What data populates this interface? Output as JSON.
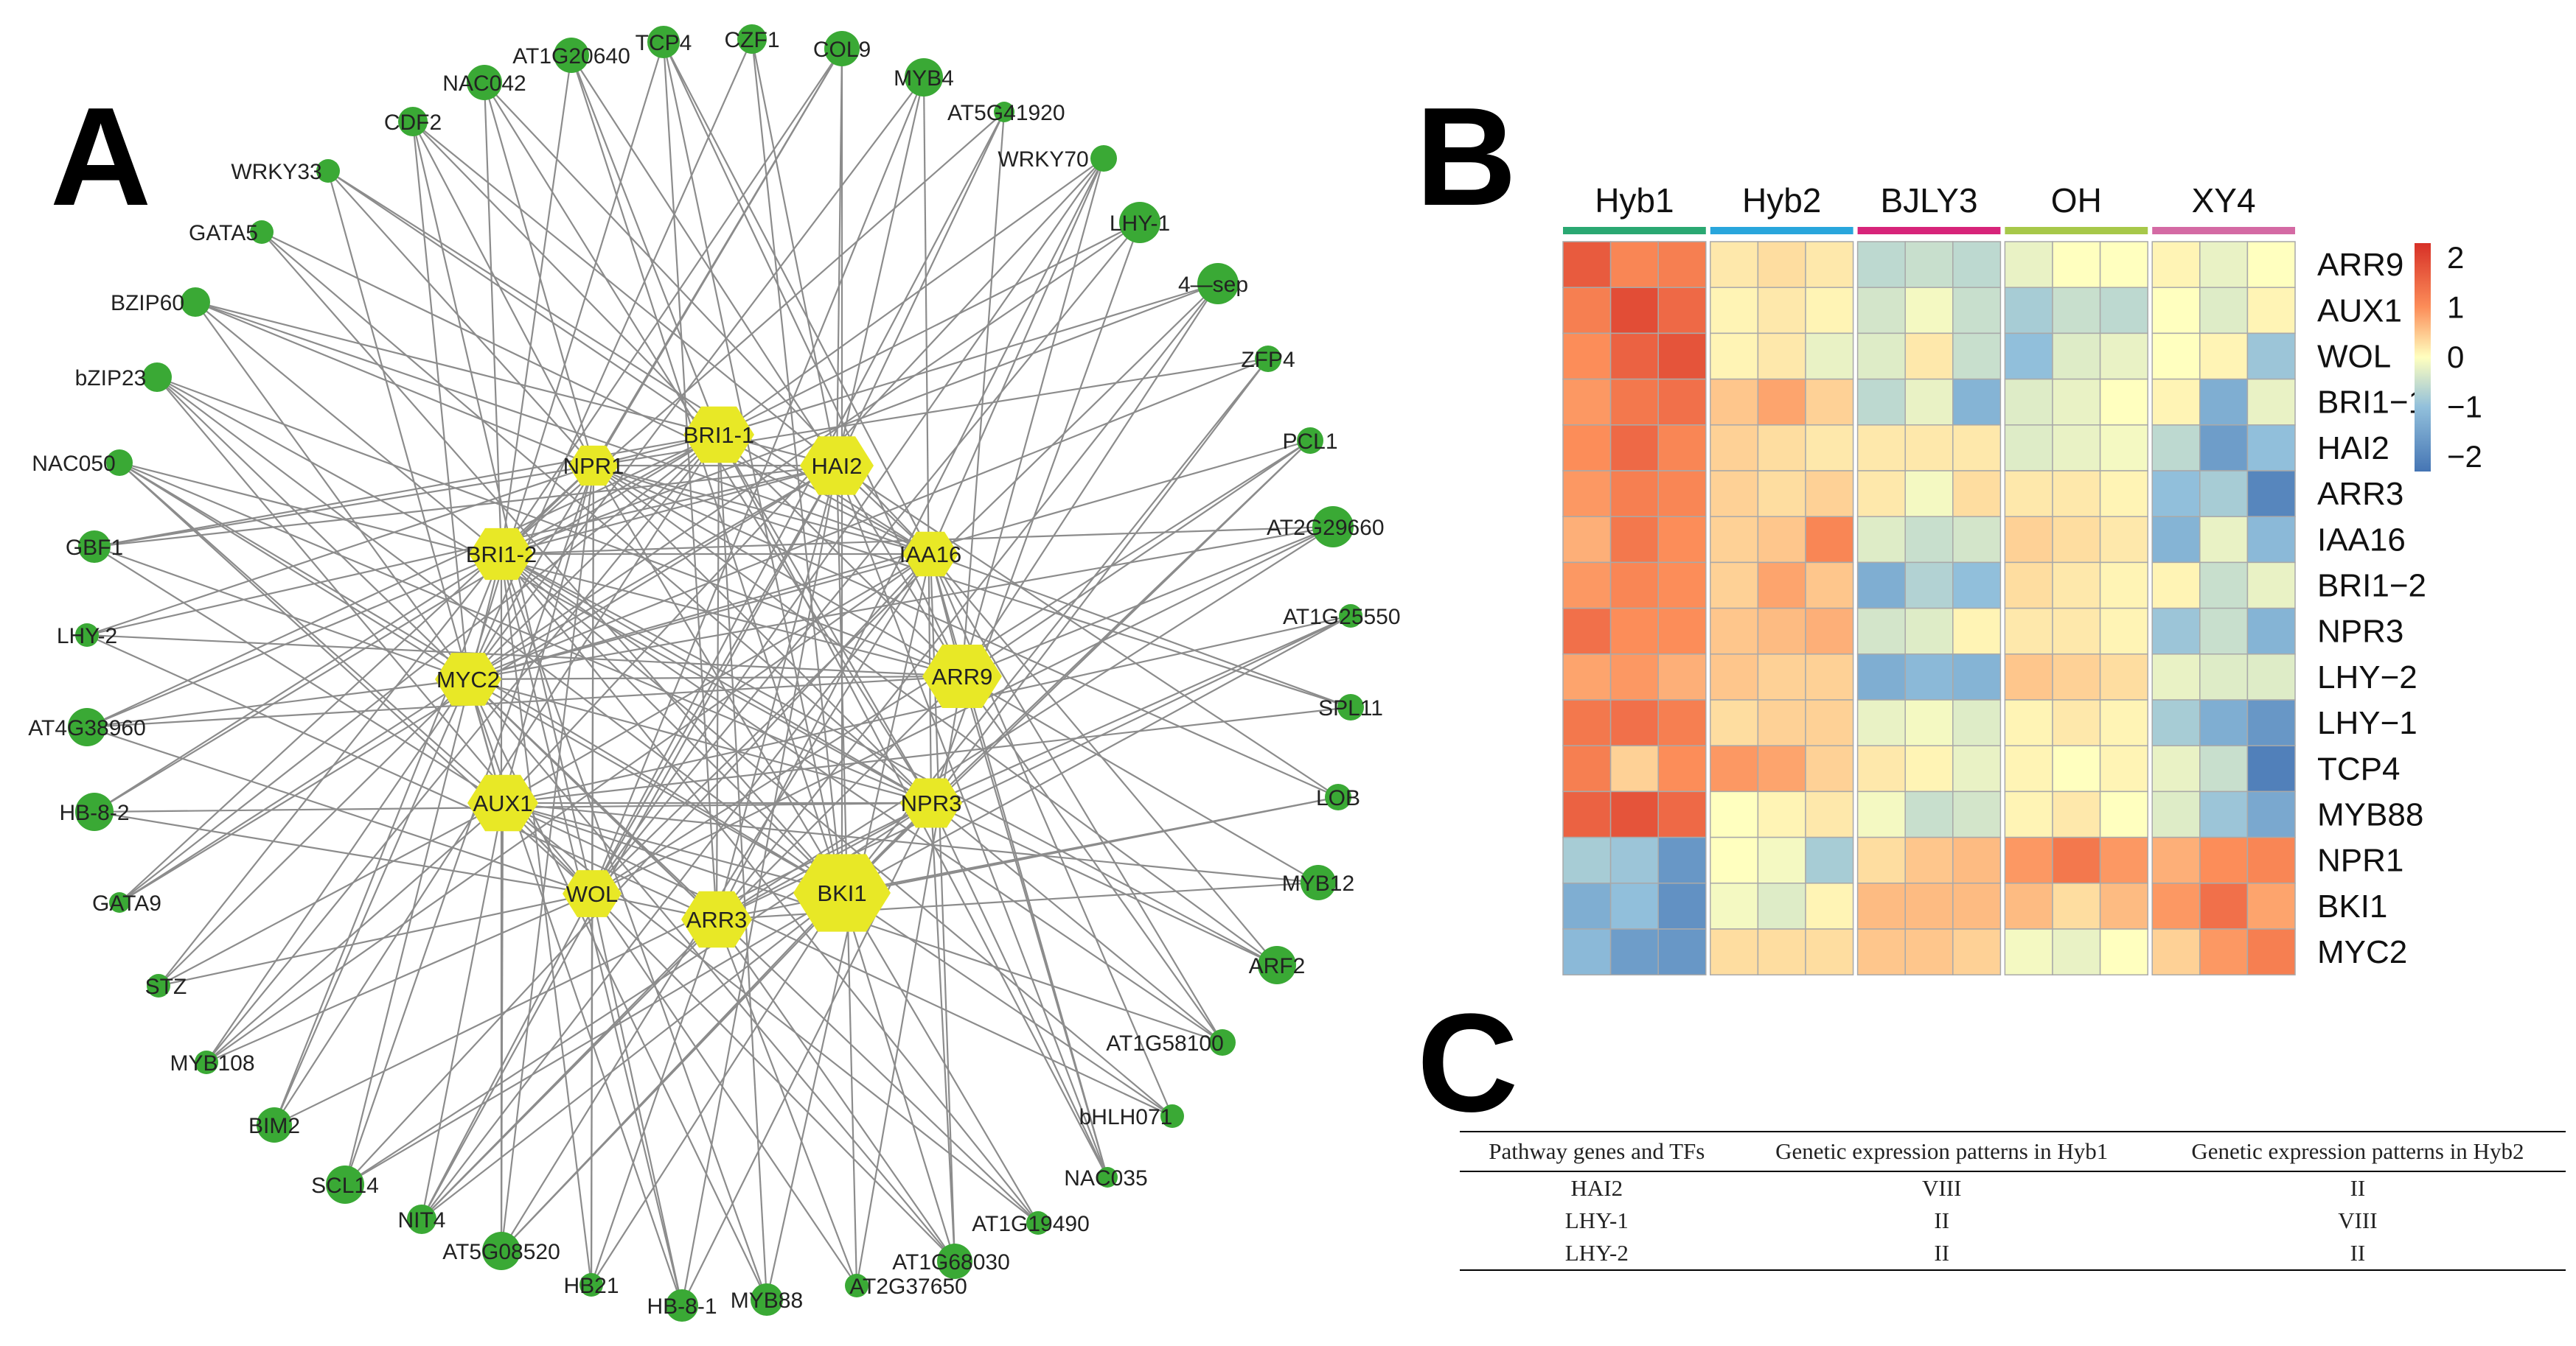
{
  "panels": {
    "a": "A",
    "b": "B",
    "c": "C"
  },
  "network": {
    "colors": {
      "hub": "#e8e826",
      "tf": "#3aa935",
      "edge": "#8c8c8c"
    },
    "hubs": [
      {
        "id": "hub-bri1-1",
        "label": "BRI1-1"
      },
      {
        "id": "hub-hai2",
        "label": "HAI2"
      },
      {
        "id": "hub-npr1",
        "label": "NPR1"
      },
      {
        "id": "hub-bri1-2",
        "label": "BRI1-2"
      },
      {
        "id": "hub-iaa16",
        "label": "IAA16"
      },
      {
        "id": "hub-myc2",
        "label": "MYC2"
      },
      {
        "id": "hub-arr9",
        "label": "ARR9"
      },
      {
        "id": "hub-aux1",
        "label": "AUX1"
      },
      {
        "id": "hub-npr3",
        "label": "NPR3"
      },
      {
        "id": "hub-wol",
        "label": "WOL"
      },
      {
        "id": "hub-arr3",
        "label": "ARR3"
      },
      {
        "id": "hub-bki1",
        "label": "BKI1"
      }
    ],
    "tfs": [
      "TCP4",
      "CZF1",
      "COL9",
      "AT1G20640",
      "NAC042",
      "MYB4",
      "AT5G41920",
      "CDF2",
      "WRKY33",
      "WRKY70",
      "LHY-1",
      "GATA5",
      "BZIP60",
      "4—sep",
      "ZFP4",
      "bZIP23",
      "PCL1",
      "NAC050",
      "AT2G29660",
      "GBF1",
      "AT1G25550",
      "LHY-2",
      "AT4G38960",
      "SPL11",
      "HB-8-2",
      "LOB",
      "GATA9",
      "MYB12",
      "STZ",
      "ARF2",
      "MYB108",
      "AT1G58100",
      "BIM2",
      "bHLH071",
      "SCL14",
      "NAC035",
      "NIT4",
      "AT1G19490",
      "AT5G08520",
      "AT1G68030",
      "HB21",
      "HB-8-1",
      "MYB88",
      "AT2G37650"
    ]
  },
  "heatmap": {
    "groups": [
      {
        "name": "Hyb1",
        "color": "#2aa872"
      },
      {
        "name": "Hyb2",
        "color": "#29a6dc"
      },
      {
        "name": "BJLY3",
        "color": "#d7247a"
      },
      {
        "name": "OH",
        "color": "#a7c84a"
      },
      {
        "name": "XY4",
        "color": "#d46aa4"
      }
    ],
    "genes": [
      "ARR9",
      "AUX1",
      "WOL",
      "BRI1−1",
      "HAI2",
      "ARR3",
      "IAA16",
      "BRI1−2",
      "NPR3",
      "LHY−2",
      "LHY−1",
      "TCP4",
      "MYB88",
      "NPR1",
      "BKI1",
      "MYC2"
    ],
    "values": [
      [
        1.7,
        1.1,
        1.2,
        0.2,
        0.3,
        0.2,
        -0.6,
        -0.5,
        -0.6,
        -0.2,
        0.0,
        0.0,
        0.1,
        -0.2,
        0.0
      ],
      [
        1.2,
        1.9,
        1.5,
        0.1,
        0.2,
        0.1,
        -0.4,
        -0.1,
        -0.5,
        -0.8,
        -0.5,
        -0.6,
        0.0,
        -0.3,
        0.1
      ],
      [
        1.0,
        1.6,
        1.8,
        0.1,
        0.2,
        -0.2,
        -0.3,
        0.2,
        -0.5,
        -1.0,
        -0.3,
        -0.2,
        0.0,
        0.1,
        -0.9
      ],
      [
        0.9,
        1.3,
        1.4,
        0.5,
        0.8,
        0.4,
        -0.6,
        -0.2,
        -1.2,
        -0.3,
        -0.2,
        0.0,
        0.1,
        -1.3,
        -0.2
      ],
      [
        1.0,
        1.5,
        1.1,
        0.4,
        0.3,
        0.2,
        0.2,
        0.2,
        0.2,
        -0.3,
        -0.2,
        -0.1,
        -0.6,
        -1.6,
        -1.0
      ],
      [
        0.9,
        1.2,
        1.1,
        0.4,
        0.3,
        0.4,
        0.2,
        -0.1,
        0.3,
        0.2,
        0.2,
        0.1,
        -1.0,
        -0.8,
        -2.0
      ],
      [
        0.7,
        1.3,
        1.0,
        0.4,
        0.5,
        1.1,
        -0.3,
        -0.5,
        -0.4,
        0.4,
        0.3,
        0.2,
        -1.2,
        -0.2,
        -1.1
      ],
      [
        0.9,
        1.1,
        1.0,
        0.4,
        0.8,
        0.5,
        -1.3,
        -0.7,
        -1.0,
        0.3,
        0.2,
        0.1,
        0.1,
        -0.5,
        -0.2
      ],
      [
        1.4,
        1.0,
        1.0,
        0.5,
        0.6,
        0.7,
        -0.4,
        -0.3,
        0.1,
        0.2,
        0.2,
        0.1,
        -0.9,
        -0.5,
        -1.2
      ],
      [
        0.8,
        0.9,
        0.7,
        0.5,
        0.4,
        0.4,
        -1.3,
        -1.1,
        -1.2,
        0.5,
        0.4,
        0.3,
        -0.2,
        -0.3,
        -0.3
      ],
      [
        1.3,
        1.4,
        1.2,
        0.3,
        0.4,
        0.4,
        -0.2,
        -0.1,
        -0.3,
        0.1,
        0.2,
        0.1,
        -0.8,
        -1.3,
        -1.7
      ],
      [
        1.2,
        0.4,
        1.0,
        0.9,
        0.8,
        0.4,
        0.2,
        0.1,
        -0.2,
        0.1,
        0.0,
        0.1,
        -0.2,
        -0.5,
        -2.1
      ],
      [
        1.6,
        1.8,
        1.5,
        0.0,
        0.1,
        0.2,
        -0.1,
        -0.5,
        -0.4,
        0.1,
        0.2,
        0.0,
        -0.3,
        -0.9,
        -1.4
      ],
      [
        -0.8,
        -0.9,
        -1.7,
        0.0,
        -0.1,
        -0.8,
        0.3,
        0.5,
        0.6,
        0.9,
        1.3,
        0.9,
        0.7,
        1.0,
        1.1
      ],
      [
        -1.3,
        -1.0,
        -1.8,
        -0.1,
        -0.3,
        0.1,
        0.6,
        0.6,
        0.6,
        0.6,
        0.3,
        0.6,
        0.9,
        1.4,
        0.8
      ],
      [
        -1.1,
        -1.6,
        -1.7,
        0.3,
        0.3,
        0.3,
        0.5,
        0.5,
        0.4,
        -0.1,
        -0.2,
        0.0,
        0.4,
        0.9,
        1.2
      ]
    ],
    "legend": {
      "ticks": [
        "2",
        "1",
        "0",
        "−1",
        "−2"
      ],
      "min": -2.3,
      "max": 2.3
    }
  },
  "table": {
    "headers": [
      "Pathway genes and TFs",
      "Genetic expression patterns in Hyb1",
      "Genetic expression patterns in Hyb2"
    ],
    "rows": [
      [
        "HAI2",
        "VIII",
        "II"
      ],
      [
        "LHY-1",
        "II",
        "VIII"
      ],
      [
        "LHY-2",
        "II",
        "II"
      ]
    ]
  }
}
